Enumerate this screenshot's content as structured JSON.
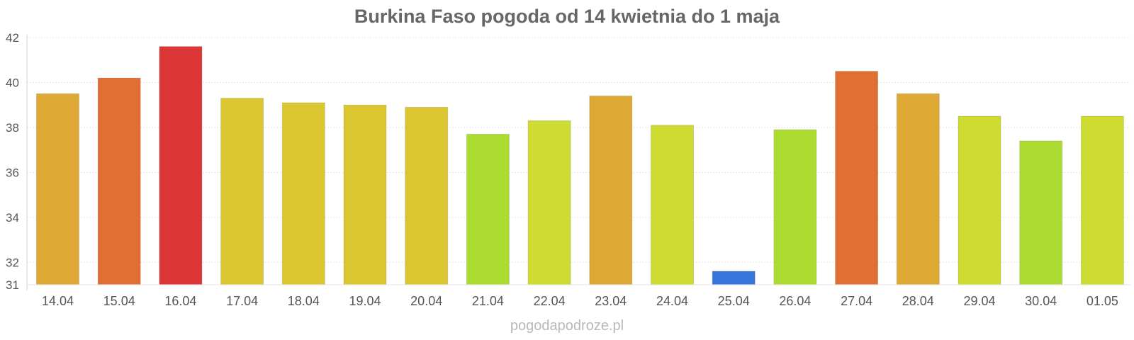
{
  "title": "Burkina Faso pogoda od 14 kwietnia do 1 maja",
  "watermark": "pogodapodroze.pl",
  "chart_data": {
    "type": "bar",
    "title": "Burkina Faso pogoda od 14 kwietnia do 1 maja",
    "xlabel": "",
    "ylabel": "",
    "categories": [
      "14.04",
      "15.04",
      "16.04",
      "17.04",
      "18.04",
      "19.04",
      "20.04",
      "21.04",
      "22.04",
      "23.04",
      "24.04",
      "25.04",
      "26.04",
      "27.04",
      "28.04",
      "29.04",
      "30.04",
      "01.05"
    ],
    "values": [
      39.5,
      40.2,
      41.6,
      39.3,
      39.1,
      39.0,
      38.9,
      37.7,
      38.3,
      39.4,
      38.1,
      31.6,
      37.9,
      40.5,
      39.5,
      38.5,
      37.4,
      38.5
    ],
    "colors": [
      "#dea834",
      "#df6f33",
      "#dc3535",
      "#dbc632",
      "#dbc632",
      "#dbc632",
      "#dbc632",
      "#acdc32",
      "#cedc32",
      "#dea834",
      "#cedc32",
      "#3575dc",
      "#acdc32",
      "#df6f33",
      "#dea834",
      "#cedc32",
      "#acdc32",
      "#cedc32"
    ],
    "yticks": [
      31,
      32,
      34,
      36,
      38,
      40,
      42
    ],
    "ylim": [
      31,
      42
    ],
    "grid": true,
    "legend": "none"
  }
}
